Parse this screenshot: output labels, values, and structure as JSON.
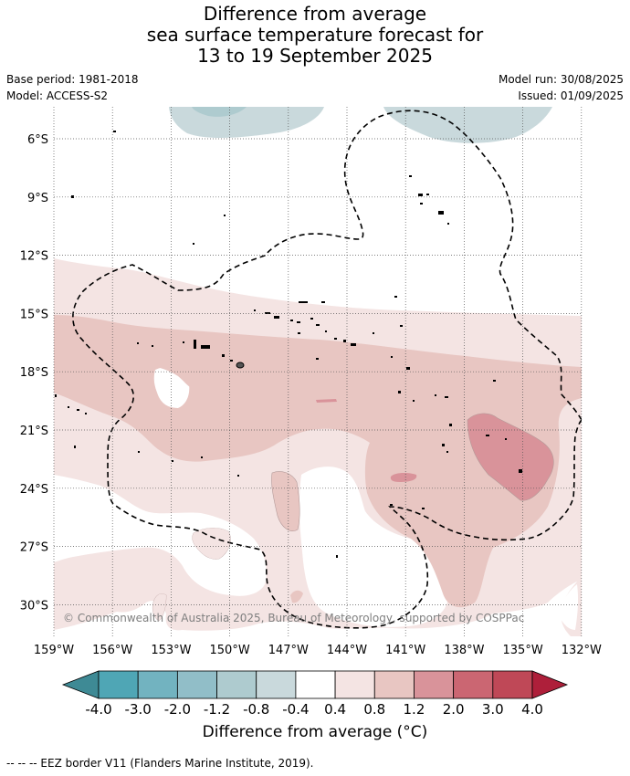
{
  "title": {
    "line1": "Difference from average",
    "line2": "sea surface temperature forecast for",
    "line3": "13 to 19 September 2025"
  },
  "meta": {
    "base_period": "Base period: 1981-2018",
    "model": "Model: ACCESS-S2",
    "model_run": "Model run: 30/08/2025",
    "issued": "Issued: 01/09/2025"
  },
  "map": {
    "lat_labels": [
      "6°S",
      "9°S",
      "12°S",
      "15°S",
      "18°S",
      "21°S",
      "24°S",
      "27°S",
      "30°S"
    ],
    "lon_labels": [
      "159°W",
      "156°W",
      "153°W",
      "150°W",
      "147°W",
      "144°W",
      "141°W",
      "138°W",
      "135°W",
      "132°W"
    ],
    "copyright": "© Commonwealth of Australia 2025, Bureau of Meteorology, supported by COSPPac"
  },
  "colorbar": {
    "colors": [
      "#3e8a95",
      "#4fa6b5",
      "#72b3c0",
      "#91bec8",
      "#aecbcf",
      "#c9d9dc",
      "#ffffff",
      "#f4e4e3",
      "#e8c6c2",
      "#d9939a",
      "#cb6672",
      "#bf4857",
      "#ae1f3a"
    ],
    "tick_labels": [
      "-4.0",
      "-3.0",
      "-2.0",
      "-1.2",
      "-0.8",
      "-0.4",
      "0.4",
      "0.8",
      "1.2",
      "2.0",
      "3.0",
      "4.0"
    ],
    "label": "Difference from average ($^{\\circ}$C)",
    "label_display": "Difference from average (°C)"
  },
  "footnote": "--  --  -- EEZ border V11 (Flanders Marine Institute, 2019)."
}
